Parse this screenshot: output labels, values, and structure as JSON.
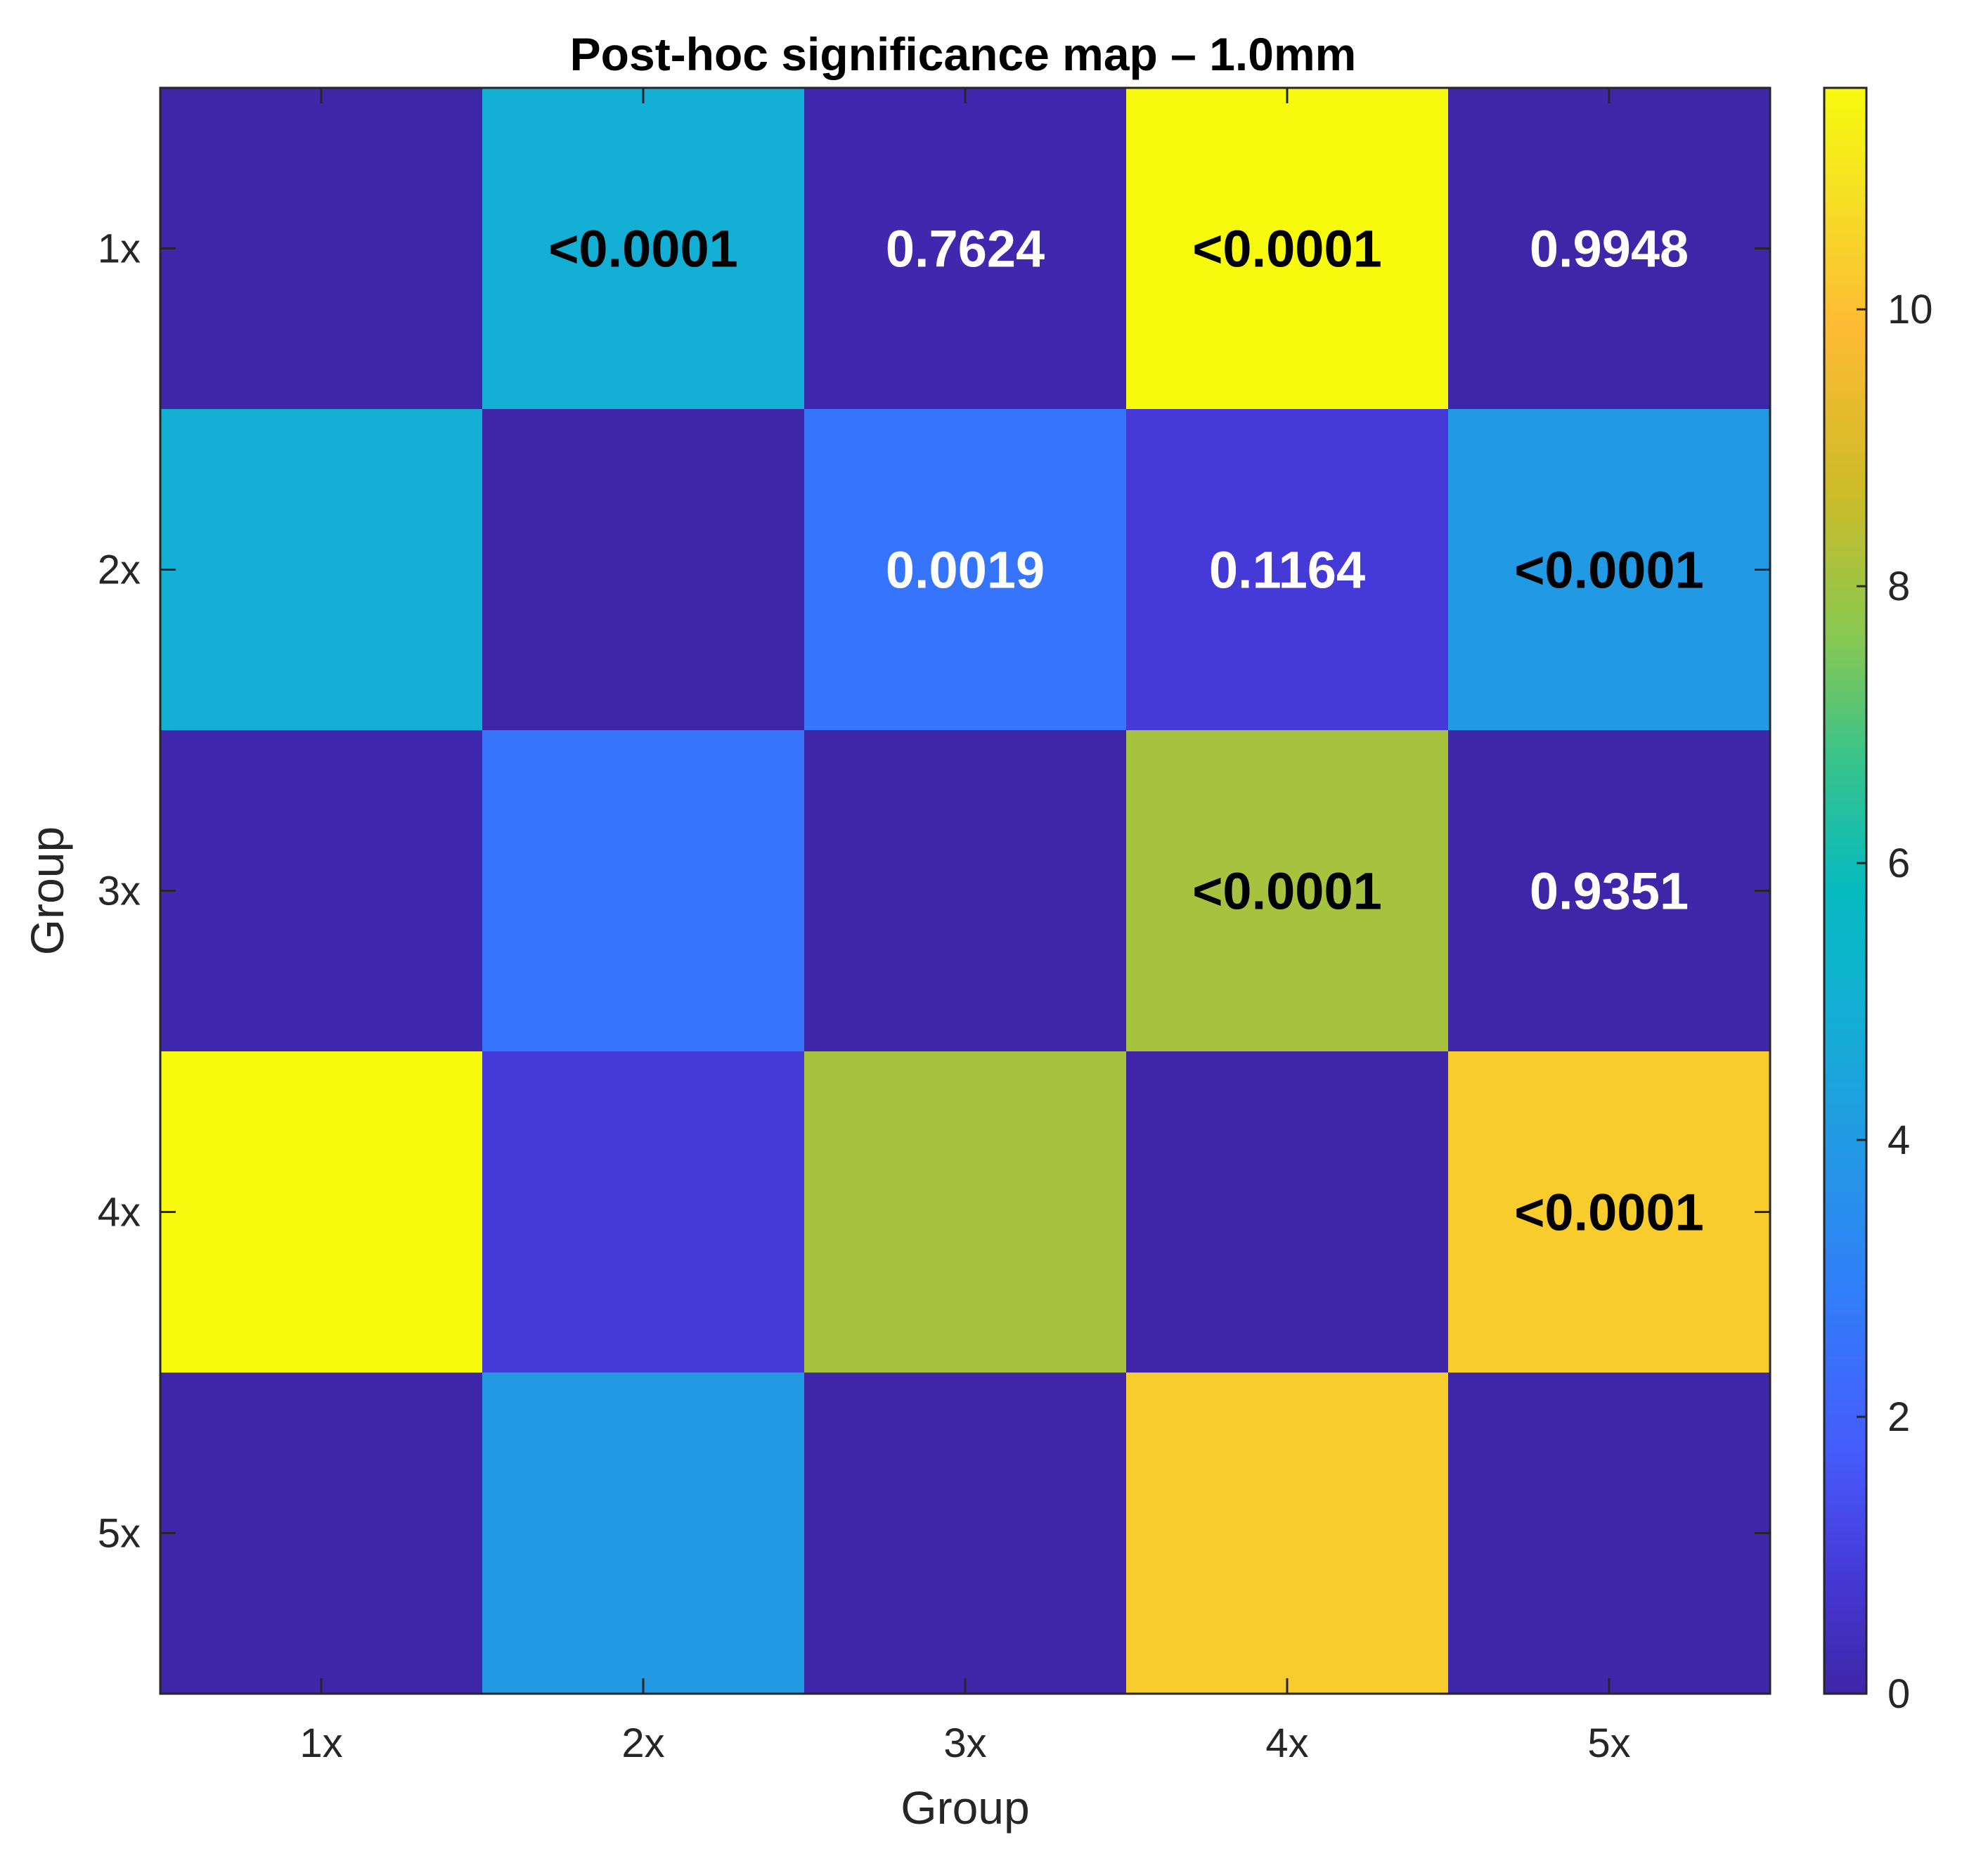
{
  "chart_data": {
    "type": "heatmap",
    "title": "Post-hoc significance map – 1.0mm",
    "xlabel": "Group",
    "ylabel": "Group",
    "x_categories": [
      "1x",
      "2x",
      "3x",
      "4x",
      "5x"
    ],
    "y_categories": [
      "1x",
      "2x",
      "3x",
      "4x",
      "5x"
    ],
    "values": [
      [
        0.0,
        4.9,
        0.1,
        11.6,
        0.0
      ],
      [
        4.9,
        0.0,
        2.6,
        0.9,
        4.0
      ],
      [
        0.1,
        2.6,
        0.0,
        8.1,
        0.0
      ],
      [
        11.6,
        0.9,
        8.1,
        0.0,
        10.3
      ],
      [
        0.0,
        4.0,
        0.0,
        10.3,
        0.0
      ]
    ],
    "cell_labels": [
      [
        "",
        "<0.0001",
        "0.7624",
        "<0.0001",
        "0.9948"
      ],
      [
        "",
        "",
        "0.0019",
        "0.1164",
        "<0.0001"
      ],
      [
        "",
        "",
        "",
        "<0.0001",
        "0.9351"
      ],
      [
        "",
        "",
        "",
        "",
        "<0.0001"
      ],
      [
        "",
        "",
        "",
        "",
        ""
      ]
    ],
    "cell_label_colors": [
      [
        "",
        "#000000",
        "#ffffff",
        "#000000",
        "#ffffff"
      ],
      [
        "",
        "",
        "#ffffff",
        "#ffffff",
        "#000000"
      ],
      [
        "",
        "",
        "",
        "#000000",
        "#ffffff"
      ],
      [
        "",
        "",
        "",
        "",
        "#000000"
      ],
      [
        "",
        "",
        "",
        "",
        ""
      ]
    ],
    "colorbar": {
      "min": 0,
      "max": 11.6,
      "ticks": [
        0,
        2,
        4,
        6,
        8,
        10
      ],
      "tick_labels": [
        "0",
        "2",
        "4",
        "6",
        "8",
        "10"
      ],
      "colormap": "parula",
      "location": "right"
    },
    "grid": false
  }
}
